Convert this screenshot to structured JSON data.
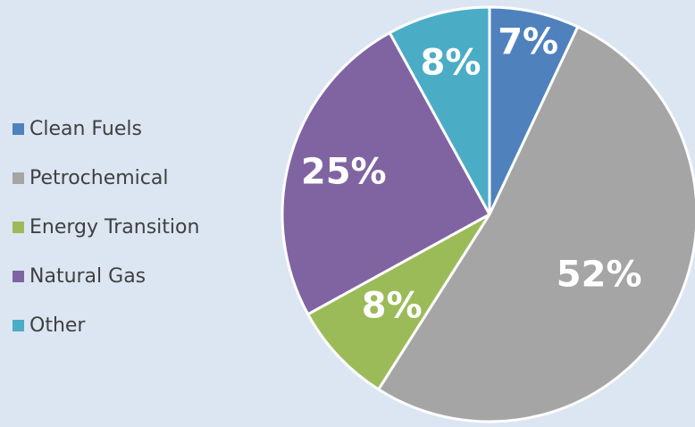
{
  "chart_data": {
    "type": "pie",
    "categories": [
      "Clean Fuels",
      "Petrochemical",
      "Energy Transition",
      "Natural Gas",
      "Other"
    ],
    "values": [
      7,
      52,
      8,
      25,
      8
    ],
    "data_labels": [
      "7%",
      "52%",
      "8%",
      "25%",
      "8%"
    ],
    "colors": [
      "#4f81bd",
      "#a5a5a5",
      "#9bbb59",
      "#8064a2",
      "#4bacc6"
    ],
    "legend": "left",
    "start_angle_deg": 0,
    "direction": "clockwise"
  }
}
